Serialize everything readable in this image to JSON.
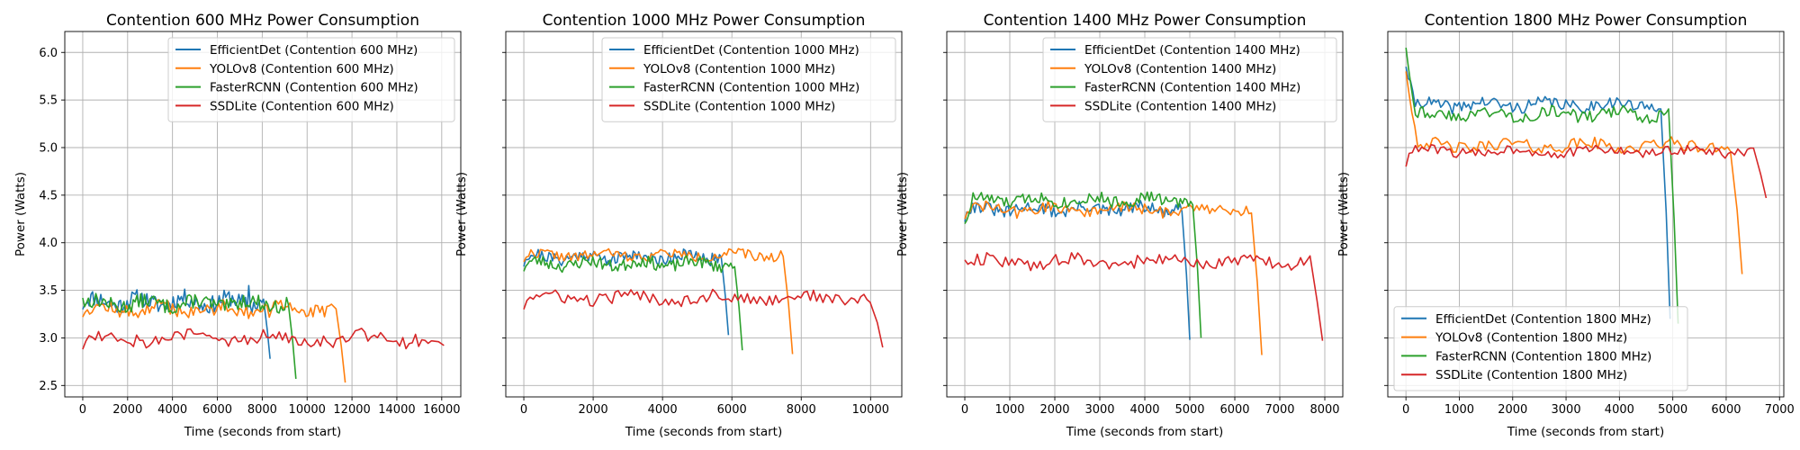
{
  "chart_data": [
    {
      "type": "line",
      "title": "Contention 600 MHz Power Consumption",
      "xlabel": "Time (seconds from start)",
      "ylabel": "Power (Watts)",
      "xlim": [
        -800,
        16850
      ],
      "ylim": [
        2.38,
        6.22
      ],
      "xticks": [
        0,
        2000,
        4000,
        6000,
        8000,
        10000,
        12000,
        14000,
        16000
      ],
      "yticks": [
        2.5,
        3.0,
        3.5,
        4.0,
        4.5,
        5.0,
        5.5,
        6.0
      ],
      "ytick_labels": [
        "2.5",
        "3.0",
        "3.5",
        "4.0",
        "4.5",
        "5.0",
        "5.5",
        "6.0"
      ],
      "grid": true,
      "legend_position": "upper-right",
      "series": [
        {
          "name": "EfficientDet (Contention 600 MHz)",
          "color": "#1f77b4",
          "x_end": 8350,
          "level": 3.38,
          "noise": 0.07,
          "drop_to": 2.78,
          "start": 3.3,
          "seed": 11,
          "peaks": [
            [
              7400,
              3.55
            ]
          ]
        },
        {
          "name": "YOLOv8 (Contention 600 MHz)",
          "color": "#ff7f0e",
          "x_end": 11700,
          "level": 3.3,
          "noise": 0.06,
          "drop_to": 2.53,
          "start": 3.22,
          "seed": 12,
          "peaks": []
        },
        {
          "name": "FasterRCNN (Contention 600 MHz)",
          "color": "#2ca02c",
          "x_end": 9500,
          "level": 3.36,
          "noise": 0.06,
          "drop_to": 2.57,
          "start": 3.42,
          "seed": 13,
          "peaks": []
        },
        {
          "name": "SSDLite (Contention 600 MHz)",
          "color": "#d62728",
          "x_end": 16100,
          "level": 3.0,
          "noise": 0.06,
          "drop_to": 2.92,
          "start": 2.88,
          "seed": 14,
          "peaks": []
        }
      ]
    },
    {
      "type": "line",
      "title": "Contention 1000 MHz Power Consumption",
      "xlabel": "Time (seconds from start)",
      "ylabel": "Power (Watts)",
      "xlim": [
        -520,
        10900
      ],
      "ylim": [
        2.38,
        6.22
      ],
      "xticks": [
        0,
        2000,
        4000,
        6000,
        8000,
        10000
      ],
      "yticks": [
        2.5,
        3.0,
        3.5,
        4.0,
        4.5,
        5.0,
        5.5,
        6.0
      ],
      "grid": true,
      "legend_position": "upper-right",
      "series": [
        {
          "name": "EfficientDet (Contention 1000 MHz)",
          "color": "#1f77b4",
          "x_end": 5900,
          "level": 3.85,
          "noise": 0.05,
          "drop_to": 3.03,
          "start": 3.75,
          "seed": 21,
          "peaks": []
        },
        {
          "name": "YOLOv8 (Contention 1000 MHz)",
          "color": "#ff7f0e",
          "x_end": 7750,
          "level": 3.87,
          "noise": 0.04,
          "drop_to": 2.83,
          "start": 3.8,
          "seed": 22,
          "peaks": []
        },
        {
          "name": "FasterRCNN (Contention 1000 MHz)",
          "color": "#2ca02c",
          "x_end": 6300,
          "level": 3.78,
          "noise": 0.05,
          "drop_to": 2.87,
          "start": 3.7,
          "seed": 23,
          "peaks": []
        },
        {
          "name": "SSDLite (Contention 1000 MHz)",
          "color": "#d62728",
          "x_end": 10350,
          "level": 3.42,
          "noise": 0.05,
          "drop_to": 2.9,
          "start": 3.3,
          "seed": 24,
          "peaks": []
        }
      ]
    },
    {
      "type": "line",
      "title": "Contention 1400 MHz Power Consumption",
      "xlabel": "Time (seconds from start)",
      "ylabel": "Power (Watts)",
      "xlim": [
        -400,
        8400
      ],
      "ylim": [
        2.38,
        6.22
      ],
      "xticks": [
        0,
        1000,
        2000,
        3000,
        4000,
        5000,
        6000,
        7000,
        8000
      ],
      "yticks": [
        2.5,
        3.0,
        3.5,
        4.0,
        4.5,
        5.0,
        5.5,
        6.0
      ],
      "grid": true,
      "legend_position": "upper-right",
      "series": [
        {
          "name": "EfficientDet (Contention 1400 MHz)",
          "color": "#1f77b4",
          "x_end": 5000,
          "level": 4.35,
          "noise": 0.05,
          "drop_to": 2.98,
          "start": 4.22,
          "seed": 31,
          "peaks": []
        },
        {
          "name": "YOLOv8 (Contention 1400 MHz)",
          "color": "#ff7f0e",
          "x_end": 6600,
          "level": 4.35,
          "noise": 0.05,
          "drop_to": 2.82,
          "start": 4.25,
          "seed": 32,
          "peaks": []
        },
        {
          "name": "FasterRCNN (Contention 1400 MHz)",
          "color": "#2ca02c",
          "x_end": 5250,
          "level": 4.45,
          "noise": 0.05,
          "drop_to": 3.0,
          "start": 4.2,
          "seed": 33,
          "peaks": []
        },
        {
          "name": "SSDLite (Contention 1400 MHz)",
          "color": "#d62728",
          "x_end": 7950,
          "level": 3.8,
          "noise": 0.05,
          "drop_to": 2.97,
          "start": 3.82,
          "seed": 34,
          "peaks": []
        }
      ]
    },
    {
      "type": "line",
      "title": "Contention 1800 MHz Power Consumption",
      "xlabel": "Time (seconds from start)",
      "ylabel": "Power (Watts)",
      "xlim": [
        -340,
        7080
      ],
      "ylim": [
        2.38,
        6.22
      ],
      "xticks": [
        0,
        1000,
        2000,
        3000,
        4000,
        5000,
        6000,
        7000
      ],
      "yticks": [
        2.5,
        3.0,
        3.5,
        4.0,
        4.5,
        5.0,
        5.5,
        6.0
      ],
      "grid": true,
      "legend_position": "lower-left",
      "series": [
        {
          "name": "EfficientDet (Contention 1800 MHz)",
          "color": "#1f77b4",
          "x_end": 4950,
          "level": 5.45,
          "noise": 0.05,
          "drop_to": 3.2,
          "start": 5.85,
          "seed": 41,
          "peaks": []
        },
        {
          "name": "YOLOv8 (Contention 1800 MHz)",
          "color": "#ff7f0e",
          "x_end": 6300,
          "level": 5.02,
          "noise": 0.05,
          "drop_to": 3.67,
          "start": 5.8,
          "seed": 42,
          "peaks": []
        },
        {
          "name": "FasterRCNN (Contention 1800 MHz)",
          "color": "#2ca02c",
          "x_end": 5100,
          "level": 5.35,
          "noise": 0.05,
          "drop_to": 3.15,
          "start": 6.05,
          "seed": 43,
          "peaks": []
        },
        {
          "name": "SSDLite (Contention 1800 MHz)",
          "color": "#d62728",
          "x_end": 6750,
          "level": 4.96,
          "noise": 0.04,
          "drop_to": 4.47,
          "start": 4.8,
          "seed": 44,
          "peaks": []
        }
      ]
    }
  ]
}
